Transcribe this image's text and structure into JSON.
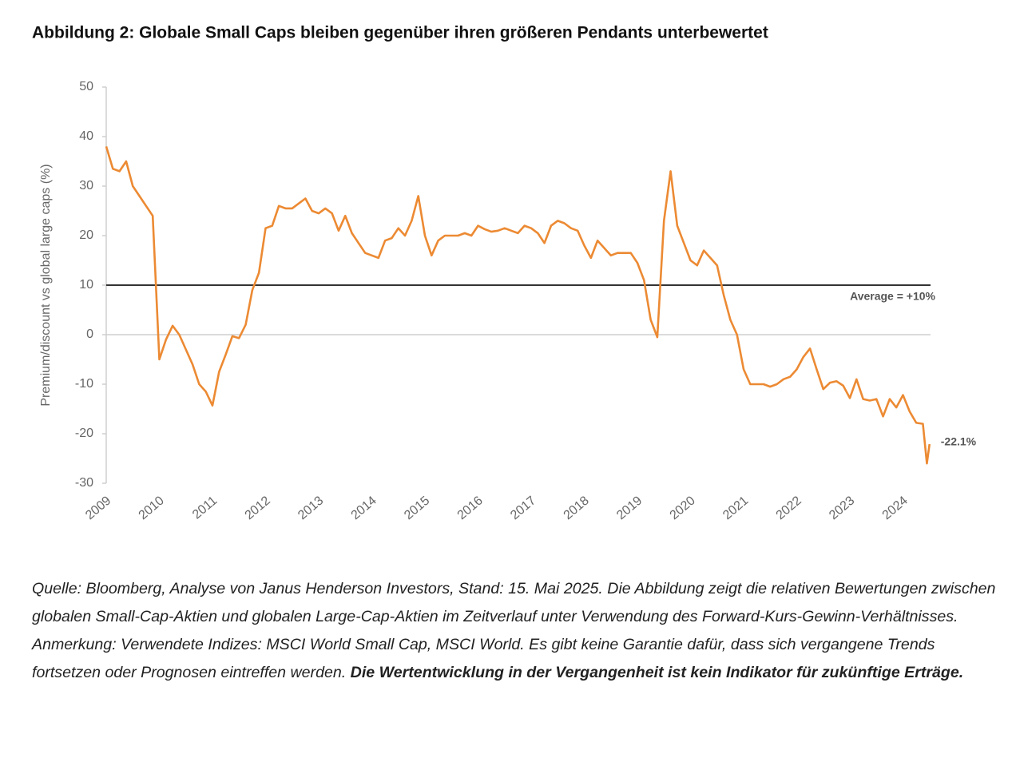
{
  "chart_data": {
    "type": "line",
    "title": "Abbildung 2: Globale Small Caps bleiben gegenüber ihren größeren Pendants unterbewertet",
    "y_label": "Premium/discount vs global large caps (%)",
    "xlim": [
      2009,
      2024.5
    ],
    "xticks": [
      2009,
      2010,
      2011,
      2012,
      2013,
      2014,
      2015,
      2016,
      2017,
      2018,
      2019,
      2020,
      2021,
      2022,
      2023,
      2024
    ],
    "ylim": [
      -30,
      50
    ],
    "yticks": [
      -30,
      -20,
      -10,
      0,
      10,
      20,
      30,
      40,
      50
    ],
    "reference_line": {
      "value": 10,
      "label": "Average = +10%",
      "color": "#333333"
    },
    "last_value_label": "-22.1%",
    "series": [
      {
        "name": "Premium/discount",
        "color": "#ec8a33",
        "x": [
          2009,
          2009.125,
          2009.25,
          2009.375,
          2009.5,
          2009.625,
          2009.75,
          2009.875,
          2010,
          2010.125,
          2010.25,
          2010.375,
          2010.5,
          2010.625,
          2010.75,
          2010.875,
          2011,
          2011.125,
          2011.25,
          2011.375,
          2011.5,
          2011.625,
          2011.75,
          2011.875,
          2012,
          2012.125,
          2012.25,
          2012.375,
          2012.5,
          2012.625,
          2012.75,
          2012.875,
          2013,
          2013.125,
          2013.25,
          2013.375,
          2013.5,
          2013.625,
          2013.75,
          2013.875,
          2014,
          2014.125,
          2014.25,
          2014.375,
          2014.5,
          2014.625,
          2014.75,
          2014.875,
          2015,
          2015.125,
          2015.25,
          2015.375,
          2015.5,
          2015.625,
          2015.75,
          2015.875,
          2016,
          2016.125,
          2016.25,
          2016.375,
          2016.5,
          2016.625,
          2016.75,
          2016.875,
          2017,
          2017.125,
          2017.25,
          2017.375,
          2017.5,
          2017.625,
          2017.75,
          2017.875,
          2018,
          2018.125,
          2018.25,
          2018.375,
          2018.5,
          2018.625,
          2018.75,
          2018.875,
          2019,
          2019.125,
          2019.25,
          2019.375,
          2019.5,
          2019.625,
          2019.75,
          2019.875,
          2020,
          2020.125,
          2020.25,
          2020.375,
          2020.5,
          2020.625,
          2020.75,
          2020.875,
          2021,
          2021.125,
          2021.25,
          2021.375,
          2021.5,
          2021.625,
          2021.75,
          2021.875,
          2022,
          2022.125,
          2022.25,
          2022.375,
          2022.5,
          2022.625,
          2022.75,
          2022.875,
          2023,
          2023.125,
          2023.25,
          2023.375,
          2023.5,
          2023.625,
          2023.75,
          2023.875,
          2024,
          2024.125,
          2024.25,
          2024.375,
          2024.45,
          2024.5
        ],
        "values": [
          38,
          33.5,
          33,
          35,
          30,
          28,
          26,
          24,
          -5,
          -1,
          1.8,
          0,
          -3,
          -6,
          -10,
          -11.5,
          -14.3,
          -7.5,
          -4,
          -0.3,
          -0.7,
          2,
          9,
          12.5,
          21.5,
          22,
          26,
          25.5,
          25.5,
          26.5,
          27.5,
          25,
          24.5,
          25.5,
          24.5,
          21,
          24,
          20.5,
          18.5,
          16.5,
          16,
          15.5,
          19,
          19.5,
          21.5,
          20,
          23,
          28,
          20,
          16,
          19,
          20,
          20,
          20,
          20.5,
          20,
          22,
          21.3,
          20.8,
          21,
          21.5,
          21,
          20.5,
          22,
          21.5,
          20.5,
          18.5,
          22,
          23,
          22.5,
          21.5,
          21,
          18,
          15.5,
          19,
          17.5,
          16,
          16.5,
          16.5,
          16.5,
          14.5,
          11,
          3,
          -0.5,
          23,
          33,
          22,
          18.5,
          15,
          14,
          17,
          15.5,
          14,
          8,
          3,
          0,
          -7,
          -10,
          -10,
          -10,
          -10.5,
          -10,
          -9,
          -8.5,
          -7,
          -4.5,
          -2.8,
          -7,
          -11,
          -9.7,
          -9.4,
          -10.3,
          -12.8,
          -9,
          -13,
          -13.3,
          -13,
          -16.5,
          -13,
          -14.7,
          -12.2,
          -15.5,
          -17.8,
          -18,
          -26,
          -22.1
        ]
      }
    ]
  },
  "caption": {
    "source": "Quelle: Bloomberg, Analyse von Janus Henderson Investors, Stand: 15. Mai 2025. Die Abbildung zeigt die relativen Bewertungen zwischen globalen Small-Cap-Aktien und globalen Large-Cap-Aktien im Zeitverlauf unter Verwendung des Forward-Kurs-Gewinn-Verhältnisses.",
    "note": "Anmerkung: Verwendete Indizes: MSCI World Small Cap, MSCI World. Es gibt keine Garantie dafür, dass sich vergangene Trends fortsetzen oder Prognosen eintreffen werden.",
    "disclaimer": "Die Wertentwicklung in der Vergangenheit ist kein Indikator für zukünftige Erträge."
  }
}
